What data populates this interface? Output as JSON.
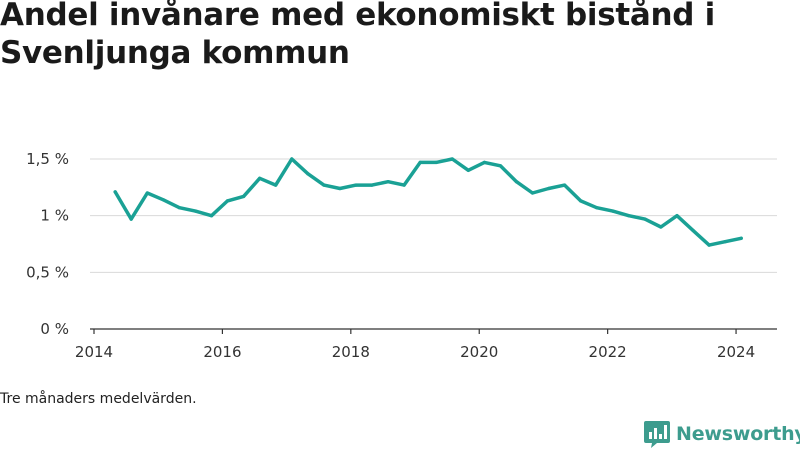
{
  "title": "Andel invånare med ekonomiskt bistånd i Svenljunga kommun",
  "footnote": "Tre månaders medelvärden.",
  "brand": {
    "name": "Newsworthy",
    "icon": "newsworthy-logo-icon"
  },
  "colors": {
    "line": "#1aa195",
    "brand": "#3d9c8e",
    "grid": "#d9d9d9",
    "axis": "#333333"
  },
  "chart_data": {
    "type": "line",
    "title": "Andel invånare med ekonomiskt bistånd i Svenljunga kommun",
    "xlabel": "",
    "ylabel": "",
    "xlim": [
      2014,
      2024.7
    ],
    "ylim": [
      0,
      1.5
    ],
    "x_ticks": [
      {
        "value": 2014,
        "label": "2014"
      },
      {
        "value": 2016,
        "label": "2016"
      },
      {
        "value": 2018,
        "label": "2018"
      },
      {
        "value": 2020,
        "label": "2020"
      },
      {
        "value": 2022,
        "label": "2022"
      },
      {
        "value": 2024,
        "label": "2024"
      }
    ],
    "y_ticks": [
      {
        "value": 0,
        "label": "0 %"
      },
      {
        "value": 0.5,
        "label": "0,5 %"
      },
      {
        "value": 1.0,
        "label": "1 %"
      },
      {
        "value": 1.5,
        "label": "1,5 %"
      }
    ],
    "grid": true,
    "series": [
      {
        "color": "#1aa195",
        "x": [
          2014.33,
          2014.58,
          2014.83,
          2015.08,
          2015.33,
          2015.58,
          2015.83,
          2016.08,
          2016.33,
          2016.58,
          2016.83,
          2017.08,
          2017.33,
          2017.58,
          2017.83,
          2018.08,
          2018.33,
          2018.58,
          2018.83,
          2019.08,
          2019.33,
          2019.58,
          2019.83,
          2020.08,
          2020.33,
          2020.58,
          2020.83,
          2021.08,
          2021.33,
          2021.58,
          2021.83,
          2022.08,
          2022.33,
          2022.58,
          2022.83,
          2023.08,
          2023.33,
          2023.58,
          2023.83,
          2024.08
        ],
        "values": [
          1.21,
          0.97,
          1.2,
          1.14,
          1.07,
          1.04,
          1.0,
          1.13,
          1.17,
          1.33,
          1.27,
          1.5,
          1.37,
          1.27,
          1.24,
          1.27,
          1.27,
          1.3,
          1.27,
          1.47,
          1.47,
          1.5,
          1.4,
          1.47,
          1.44,
          1.3,
          1.2,
          1.24,
          1.27,
          1.13,
          1.07,
          1.04,
          1.0,
          0.97,
          0.9,
          1.0,
          0.87,
          0.74,
          0.77,
          0.8
        ]
      }
    ]
  }
}
